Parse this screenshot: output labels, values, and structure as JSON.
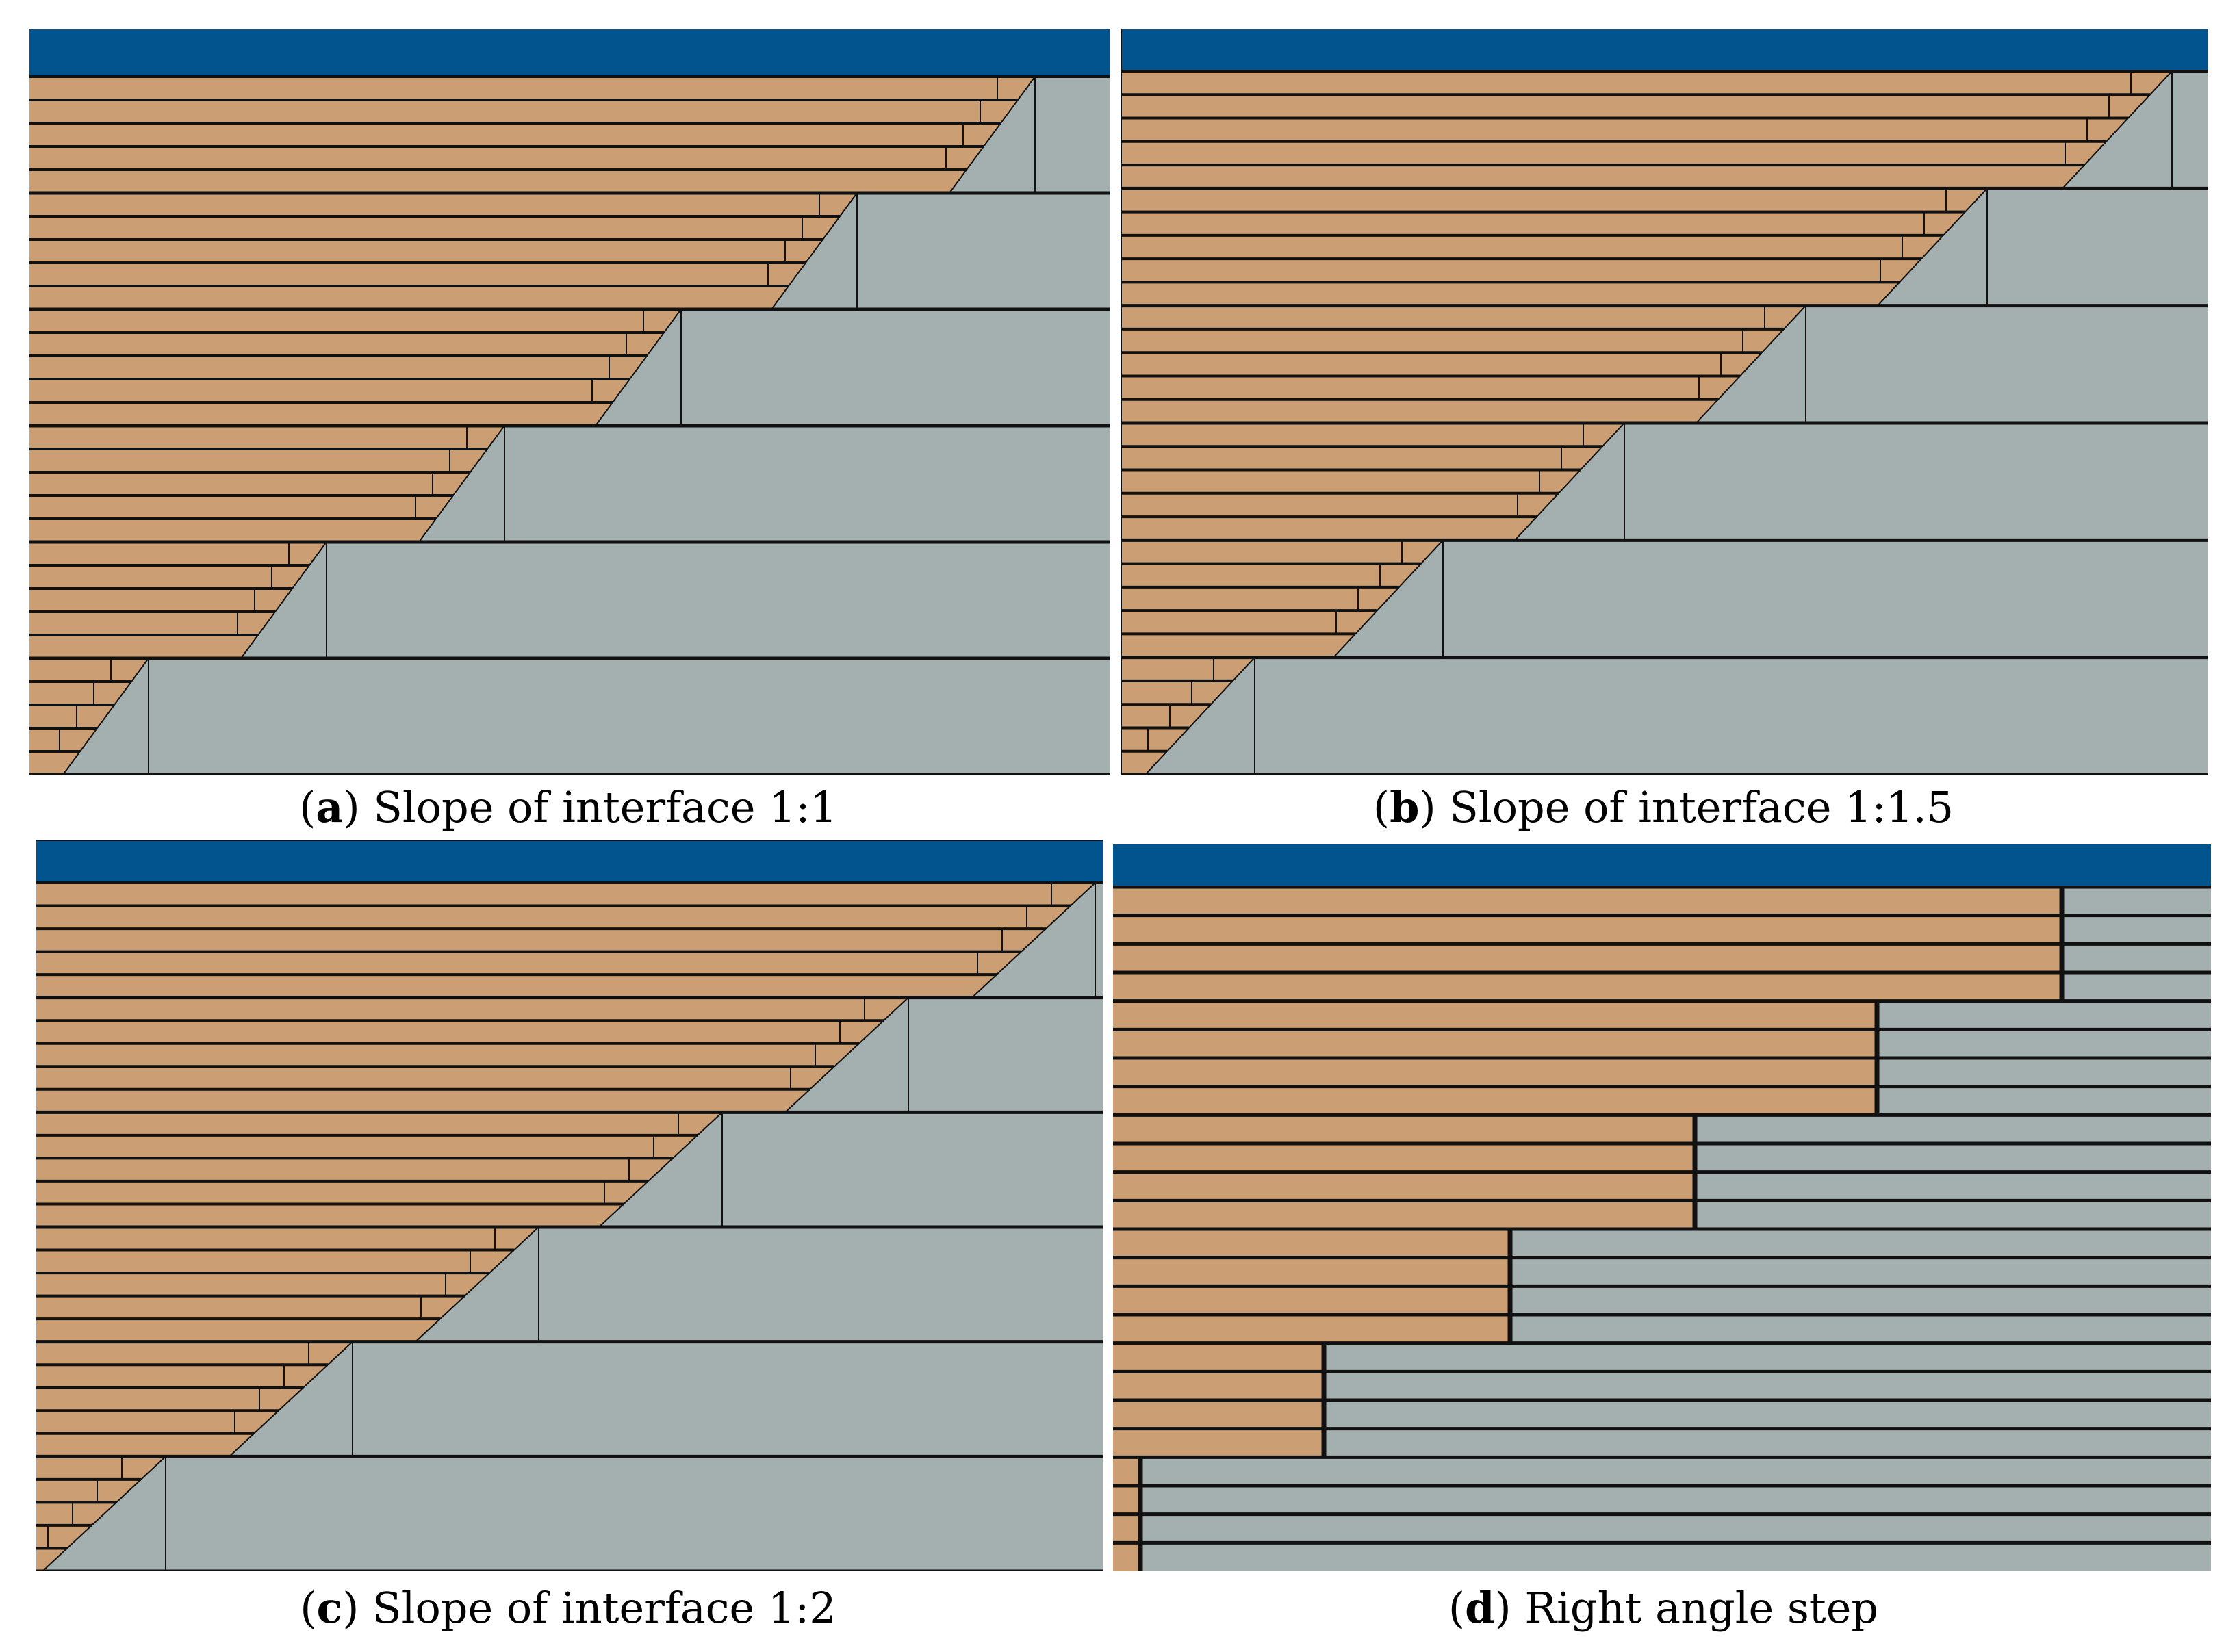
{
  "colors": {
    "water": "#02548E",
    "new_fill": "#CC9E73",
    "old_dam": "#A4B0B0",
    "line": "#111111",
    "background": "#FFFFFF"
  },
  "panels": [
    {
      "id": "a",
      "caption_letter": "a",
      "caption_text": "Slope of interface 1:1",
      "type": "sloped",
      "slope": "1:1",
      "steps": 6
    },
    {
      "id": "b",
      "caption_letter": "b",
      "caption_text": "Slope of interface 1:1.5",
      "type": "sloped",
      "slope": "1:1.5",
      "steps": 6
    },
    {
      "id": "c",
      "caption_letter": "c",
      "caption_text": "Slope of interface 1:2",
      "type": "sloped",
      "slope": "1:2",
      "steps": 6
    },
    {
      "id": "d",
      "caption_letter": "d",
      "caption_text": "Right angle step",
      "type": "right-angle",
      "steps": 6
    }
  ]
}
